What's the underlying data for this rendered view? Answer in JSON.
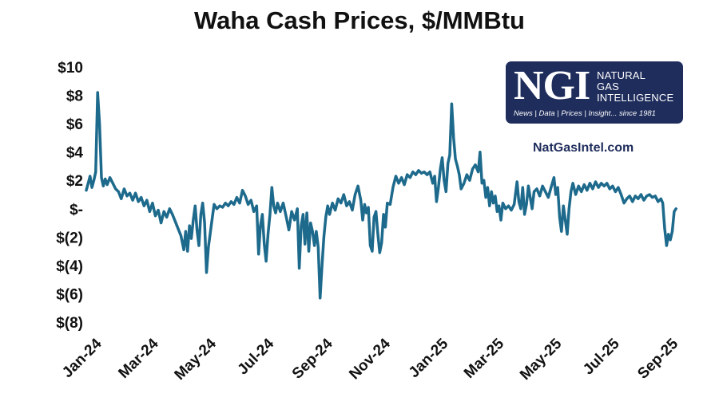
{
  "logo": {
    "mark": "NGI",
    "name_lines": [
      "Natural",
      "Gas",
      "Intelligence"
    ],
    "tagline": "News | Data | Prices | Insight... since 1981"
  },
  "website": "NatGasIntel.com",
  "chart_data": {
    "type": "line",
    "title": "Waha Cash Prices, $/MMBtu",
    "xlabel": "",
    "ylabel": "",
    "ylim": [
      -8,
      10
    ],
    "yticks": [
      10,
      8,
      6,
      4,
      2,
      0,
      -2,
      -4,
      -6,
      -8
    ],
    "ytick_labels": [
      "$10",
      "$8",
      "$6",
      "$4",
      "$2",
      "$-",
      "$(2)",
      "$(4)",
      "$(6)",
      "$(8)"
    ],
    "xlim": [
      "2024-01-01",
      "2025-09-30"
    ],
    "xtick_dates": [
      "2024-01-01",
      "2024-03-01",
      "2024-05-01",
      "2024-07-01",
      "2024-09-01",
      "2024-11-01",
      "2025-01-01",
      "2025-03-01",
      "2025-05-01",
      "2025-07-01",
      "2025-09-01"
    ],
    "xtick_labels": [
      "Jan-24",
      "Mar-24",
      "May-24",
      "Jul-24",
      "Sep-24",
      "Nov-24",
      "Jan-25",
      "Mar-25",
      "May-25",
      "Jul-25",
      "Sep-25"
    ],
    "grid": false,
    "line_color": "#1d6a8c",
    "series": [
      {
        "name": "",
        "points": [
          [
            "2024-01-01",
            1.3
          ],
          [
            "2024-01-03",
            1.8
          ],
          [
            "2024-01-05",
            2.3
          ],
          [
            "2024-01-07",
            1.5
          ],
          [
            "2024-01-09",
            2.0
          ],
          [
            "2024-01-11",
            2.6
          ],
          [
            "2024-01-13",
            8.2
          ],
          [
            "2024-01-15",
            6.0
          ],
          [
            "2024-01-17",
            2.2
          ],
          [
            "2024-01-19",
            1.6
          ],
          [
            "2024-01-21",
            2.1
          ],
          [
            "2024-01-23",
            1.7
          ],
          [
            "2024-01-26",
            2.2
          ],
          [
            "2024-01-29",
            1.8
          ],
          [
            "2024-02-01",
            1.4
          ],
          [
            "2024-02-04",
            1.2
          ],
          [
            "2024-02-07",
            0.7
          ],
          [
            "2024-02-10",
            1.4
          ],
          [
            "2024-02-13",
            0.9
          ],
          [
            "2024-02-16",
            1.1
          ],
          [
            "2024-02-19",
            0.6
          ],
          [
            "2024-02-22",
            1.1
          ],
          [
            "2024-02-25",
            0.5
          ],
          [
            "2024-02-28",
            0.8
          ],
          [
            "2024-03-02",
            0.2
          ],
          [
            "2024-03-05",
            0.6
          ],
          [
            "2024-03-08",
            -0.2
          ],
          [
            "2024-03-11",
            0.4
          ],
          [
            "2024-03-14",
            -0.5
          ],
          [
            "2024-03-17",
            -0.1
          ],
          [
            "2024-03-20",
            -1.0
          ],
          [
            "2024-03-23",
            -0.2
          ],
          [
            "2024-03-26",
            -0.6
          ],
          [
            "2024-03-29",
            0.0
          ],
          [
            "2024-04-01",
            -0.4
          ],
          [
            "2024-04-04",
            -0.9
          ],
          [
            "2024-04-07",
            -1.4
          ],
          [
            "2024-04-10",
            -1.9
          ],
          [
            "2024-04-13",
            -2.9
          ],
          [
            "2024-04-15",
            -1.6
          ],
          [
            "2024-04-17",
            -3.0
          ],
          [
            "2024-04-19",
            -1.2
          ],
          [
            "2024-04-21",
            -2.1
          ],
          [
            "2024-04-23",
            -0.8
          ],
          [
            "2024-04-25",
            0.2
          ],
          [
            "2024-04-27",
            -1.5
          ],
          [
            "2024-04-29",
            -2.6
          ],
          [
            "2024-05-01",
            -0.4
          ],
          [
            "2024-05-03",
            0.4
          ],
          [
            "2024-05-05",
            -1.0
          ],
          [
            "2024-05-07",
            -4.5
          ],
          [
            "2024-05-09",
            -2.7
          ],
          [
            "2024-05-12",
            -1.2
          ],
          [
            "2024-05-15",
            0.3
          ],
          [
            "2024-05-18",
            0.0
          ],
          [
            "2024-05-21",
            0.2
          ],
          [
            "2024-05-24",
            0.1
          ],
          [
            "2024-05-27",
            0.4
          ],
          [
            "2024-05-30",
            0.2
          ],
          [
            "2024-06-02",
            0.5
          ],
          [
            "2024-06-05",
            0.3
          ],
          [
            "2024-06-08",
            0.8
          ],
          [
            "2024-06-11",
            0.4
          ],
          [
            "2024-06-14",
            1.3
          ],
          [
            "2024-06-17",
            0.9
          ],
          [
            "2024-06-20",
            0.3
          ],
          [
            "2024-06-23",
            0.6
          ],
          [
            "2024-06-26",
            -0.2
          ],
          [
            "2024-06-29",
            0.2
          ],
          [
            "2024-07-01",
            -3.2
          ],
          [
            "2024-07-03",
            -1.2
          ],
          [
            "2024-07-05",
            -0.4
          ],
          [
            "2024-07-07",
            -2.5
          ],
          [
            "2024-07-09",
            -3.7
          ],
          [
            "2024-07-11",
            -1.8
          ],
          [
            "2024-07-13",
            -0.4
          ],
          [
            "2024-07-15",
            1.5
          ],
          [
            "2024-07-17",
            0.2
          ],
          [
            "2024-07-19",
            -0.3
          ],
          [
            "2024-07-21",
            0.4
          ],
          [
            "2024-07-24",
            -0.2
          ],
          [
            "2024-07-27",
            0.4
          ],
          [
            "2024-07-30",
            -0.5
          ],
          [
            "2024-08-02",
            -1.5
          ],
          [
            "2024-08-05",
            -0.2
          ],
          [
            "2024-08-08",
            -0.8
          ],
          [
            "2024-08-11",
            0.0
          ],
          [
            "2024-08-13",
            -4.2
          ],
          [
            "2024-08-15",
            -1.2
          ],
          [
            "2024-08-17",
            -0.4
          ],
          [
            "2024-08-19",
            -2.5
          ],
          [
            "2024-08-21",
            -0.3
          ],
          [
            "2024-08-23",
            -3.0
          ],
          [
            "2024-08-25",
            -1.0
          ],
          [
            "2024-08-27",
            -1.6
          ],
          [
            "2024-08-29",
            -2.6
          ],
          [
            "2024-08-31",
            -1.6
          ],
          [
            "2024-09-02",
            -2.7
          ],
          [
            "2024-09-04",
            -6.3
          ],
          [
            "2024-09-06",
            -4.0
          ],
          [
            "2024-09-08",
            -2.0
          ],
          [
            "2024-09-10",
            -0.6
          ],
          [
            "2024-09-12",
            0.2
          ],
          [
            "2024-09-14",
            -0.4
          ],
          [
            "2024-09-17",
            0.4
          ],
          [
            "2024-09-20",
            -0.1
          ],
          [
            "2024-09-23",
            0.7
          ],
          [
            "2024-09-26",
            0.4
          ],
          [
            "2024-09-29",
            1.0
          ],
          [
            "2024-10-02",
            0.2
          ],
          [
            "2024-10-05",
            0.5
          ],
          [
            "2024-10-08",
            -0.1
          ],
          [
            "2024-10-11",
            1.0
          ],
          [
            "2024-10-14",
            1.6
          ],
          [
            "2024-10-17",
            0.6
          ],
          [
            "2024-10-19",
            -0.8
          ],
          [
            "2024-10-21",
            0.3
          ],
          [
            "2024-10-23",
            -0.3
          ],
          [
            "2024-10-25",
            0.1
          ],
          [
            "2024-10-27",
            -2.6
          ],
          [
            "2024-10-29",
            -3.0
          ],
          [
            "2024-10-31",
            -0.6
          ],
          [
            "2024-11-02",
            -0.2
          ],
          [
            "2024-11-04",
            -1.8
          ],
          [
            "2024-11-06",
            -3.1
          ],
          [
            "2024-11-08",
            -2.4
          ],
          [
            "2024-11-10",
            -0.4
          ],
          [
            "2024-11-12",
            -1.3
          ],
          [
            "2024-11-14",
            0.4
          ],
          [
            "2024-11-17",
            0.3
          ],
          [
            "2024-11-20",
            1.5
          ],
          [
            "2024-11-23",
            2.3
          ],
          [
            "2024-11-26",
            1.8
          ],
          [
            "2024-11-29",
            2.2
          ],
          [
            "2024-12-02",
            1.7
          ],
          [
            "2024-12-05",
            2.4
          ],
          [
            "2024-12-08",
            2.2
          ],
          [
            "2024-12-11",
            2.6
          ],
          [
            "2024-12-14",
            2.4
          ],
          [
            "2024-12-17",
            2.7
          ],
          [
            "2024-12-20",
            2.5
          ],
          [
            "2024-12-23",
            2.6
          ],
          [
            "2024-12-26",
            2.4
          ],
          [
            "2024-12-29",
            2.6
          ],
          [
            "2025-01-01",
            1.8
          ],
          [
            "2025-01-03",
            2.3
          ],
          [
            "2025-01-05",
            0.5
          ],
          [
            "2025-01-07",
            1.5
          ],
          [
            "2025-01-09",
            2.8
          ],
          [
            "2025-01-11",
            3.6
          ],
          [
            "2025-01-13",
            2.0
          ],
          [
            "2025-01-15",
            1.2
          ],
          [
            "2025-01-17",
            3.2
          ],
          [
            "2025-01-19",
            3.8
          ],
          [
            "2025-01-21",
            7.4
          ],
          [
            "2025-01-23",
            5.0
          ],
          [
            "2025-01-25",
            3.5
          ],
          [
            "2025-01-27",
            3.0
          ],
          [
            "2025-01-29",
            2.4
          ],
          [
            "2025-01-31",
            1.4
          ],
          [
            "2025-02-03",
            1.8
          ],
          [
            "2025-02-06",
            2.4
          ],
          [
            "2025-02-09",
            2.0
          ],
          [
            "2025-02-12",
            2.8
          ],
          [
            "2025-02-15",
            3.1
          ],
          [
            "2025-02-18",
            2.6
          ],
          [
            "2025-02-20",
            4.0
          ],
          [
            "2025-02-22",
            1.8
          ],
          [
            "2025-02-24",
            2.0
          ],
          [
            "2025-02-26",
            0.8
          ],
          [
            "2025-02-28",
            1.5
          ],
          [
            "2025-03-02",
            0.2
          ],
          [
            "2025-03-04",
            1.2
          ],
          [
            "2025-03-06",
            0.4
          ],
          [
            "2025-03-08",
            0.9
          ],
          [
            "2025-03-10",
            -0.2
          ],
          [
            "2025-03-12",
            0.2
          ],
          [
            "2025-03-14",
            -0.8
          ],
          [
            "2025-03-16",
            0.4
          ],
          [
            "2025-03-19",
            0.0
          ],
          [
            "2025-03-22",
            0.2
          ],
          [
            "2025-03-25",
            -0.1
          ],
          [
            "2025-03-28",
            0.3
          ],
          [
            "2025-03-31",
            1.9
          ],
          [
            "2025-04-02",
            0.5
          ],
          [
            "2025-04-04",
            0.0
          ],
          [
            "2025-04-06",
            1.5
          ],
          [
            "2025-04-08",
            -0.4
          ],
          [
            "2025-04-10",
            0.3
          ],
          [
            "2025-04-12",
            1.6
          ],
          [
            "2025-04-14",
            0.8
          ],
          [
            "2025-04-16",
            0.0
          ],
          [
            "2025-04-18",
            1.2
          ],
          [
            "2025-04-21",
            1.4
          ],
          [
            "2025-04-24",
            0.9
          ],
          [
            "2025-04-27",
            1.6
          ],
          [
            "2025-04-30",
            1.2
          ],
          [
            "2025-05-03",
            0.8
          ],
          [
            "2025-05-06",
            1.5
          ],
          [
            "2025-05-09",
            2.2
          ],
          [
            "2025-05-11",
            1.0
          ],
          [
            "2025-05-13",
            1.5
          ],
          [
            "2025-05-15",
            -0.6
          ],
          [
            "2025-05-17",
            -1.6
          ],
          [
            "2025-05-19",
            0.2
          ],
          [
            "2025-05-21",
            -0.8
          ],
          [
            "2025-05-23",
            -1.8
          ],
          [
            "2025-05-25",
            0.0
          ],
          [
            "2025-05-27",
            1.2
          ],
          [
            "2025-05-29",
            1.8
          ],
          [
            "2025-06-01",
            1.0
          ],
          [
            "2025-06-04",
            1.6
          ],
          [
            "2025-06-07",
            1.2
          ],
          [
            "2025-06-10",
            1.7
          ],
          [
            "2025-06-13",
            1.3
          ],
          [
            "2025-06-16",
            1.8
          ],
          [
            "2025-06-19",
            1.4
          ],
          [
            "2025-06-22",
            1.9
          ],
          [
            "2025-06-25",
            1.5
          ],
          [
            "2025-06-28",
            1.8
          ],
          [
            "2025-07-01",
            1.6
          ],
          [
            "2025-07-04",
            1.8
          ],
          [
            "2025-07-07",
            1.4
          ],
          [
            "2025-07-10",
            1.6
          ],
          [
            "2025-07-13",
            1.2
          ],
          [
            "2025-07-16",
            1.5
          ],
          [
            "2025-07-19",
            1.0
          ],
          [
            "2025-07-22",
            0.4
          ],
          [
            "2025-07-25",
            0.7
          ],
          [
            "2025-07-28",
            0.9
          ],
          [
            "2025-07-31",
            0.5
          ],
          [
            "2025-08-03",
            0.9
          ],
          [
            "2025-08-06",
            0.7
          ],
          [
            "2025-08-09",
            1.0
          ],
          [
            "2025-08-12",
            0.6
          ],
          [
            "2025-08-15",
            0.9
          ],
          [
            "2025-08-18",
            1.0
          ],
          [
            "2025-08-21",
            0.8
          ],
          [
            "2025-08-24",
            0.9
          ],
          [
            "2025-08-27",
            0.5
          ],
          [
            "2025-08-30",
            0.7
          ],
          [
            "2025-09-01",
            0.4
          ],
          [
            "2025-09-03",
            -1.4
          ],
          [
            "2025-09-05",
            -2.6
          ],
          [
            "2025-09-07",
            -1.8
          ],
          [
            "2025-09-09",
            -2.2
          ],
          [
            "2025-09-11",
            -1.6
          ],
          [
            "2025-09-13",
            -0.2
          ],
          [
            "2025-09-15",
            0.0
          ]
        ]
      }
    ]
  }
}
